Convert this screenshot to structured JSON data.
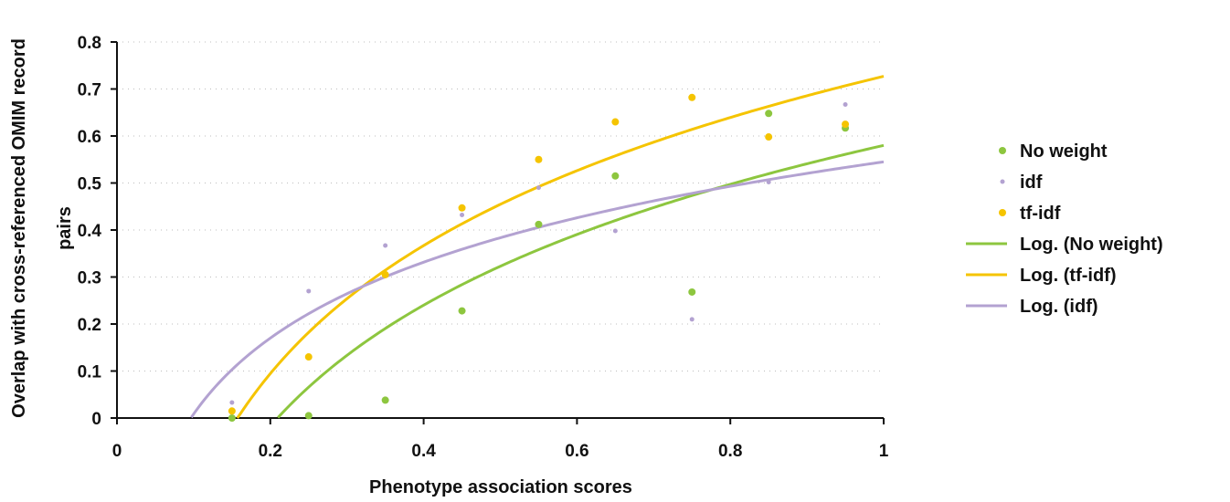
{
  "chart_data": {
    "type": "scatter",
    "xlabel": "Phenotype association scores",
    "ylabel_lines": [
      "Overlap with cross-referenced OMIM record",
      "pairs"
    ],
    "xlim": [
      0,
      1
    ],
    "ylim": [
      0,
      0.8
    ],
    "x_ticks": [
      0,
      0.2,
      0.4,
      0.6,
      0.8,
      1
    ],
    "x_tick_labels": [
      "0",
      "0.2",
      "0.4",
      "0.6",
      "0.8",
      "1"
    ],
    "y_ticks": [
      0,
      0.1,
      0.2,
      0.3,
      0.4,
      0.5,
      0.6,
      0.7,
      0.8
    ],
    "y_tick_labels": [
      "0",
      "0.1",
      "0.2",
      "0.3",
      "0.4",
      "0.5",
      "0.6",
      "0.7",
      "0.8"
    ],
    "grid": "horizontal dotted",
    "legend_position": "right",
    "series": [
      {
        "name": "No weight",
        "kind": "points",
        "color": "#8dc63f",
        "x": [
          0.15,
          0.25,
          0.35,
          0.45,
          0.55,
          0.65,
          0.75,
          0.85,
          0.95
        ],
        "y": [
          0.0,
          0.005,
          0.038,
          0.228,
          0.412,
          0.515,
          0.268,
          0.648,
          0.617
        ]
      },
      {
        "name": "idf",
        "kind": "points",
        "color": "#b3a2d1",
        "x": [
          0.15,
          0.25,
          0.35,
          0.45,
          0.55,
          0.65,
          0.75,
          0.85,
          0.95
        ],
        "y": [
          0.033,
          0.27,
          0.367,
          0.432,
          0.49,
          0.398,
          0.21,
          0.502,
          0.667
        ]
      },
      {
        "name": "tf-idf",
        "kind": "points",
        "color": "#f5c400",
        "x": [
          0.15,
          0.25,
          0.35,
          0.45,
          0.55,
          0.65,
          0.75,
          0.85,
          0.95
        ],
        "y": [
          0.015,
          0.13,
          0.305,
          0.447,
          0.55,
          0.63,
          0.682,
          0.598,
          0.625
        ]
      },
      {
        "name": "Log. (No weight)",
        "kind": "trend",
        "color": "#8dc63f",
        "intercept": 0.58,
        "slope": 0.371,
        "x_start": 0.21,
        "x_end": 1.0
      },
      {
        "name": "Log. (tf-idf)",
        "kind": "trend",
        "color": "#f5c400",
        "intercept": 0.727,
        "slope": 0.393,
        "x_start": 0.157,
        "x_end": 1.0
      },
      {
        "name": "Log. (idf)",
        "kind": "trend",
        "color": "#b3a2d1",
        "intercept": 0.545,
        "slope": 0.233,
        "x_start": 0.097,
        "x_end": 1.0
      }
    ]
  }
}
